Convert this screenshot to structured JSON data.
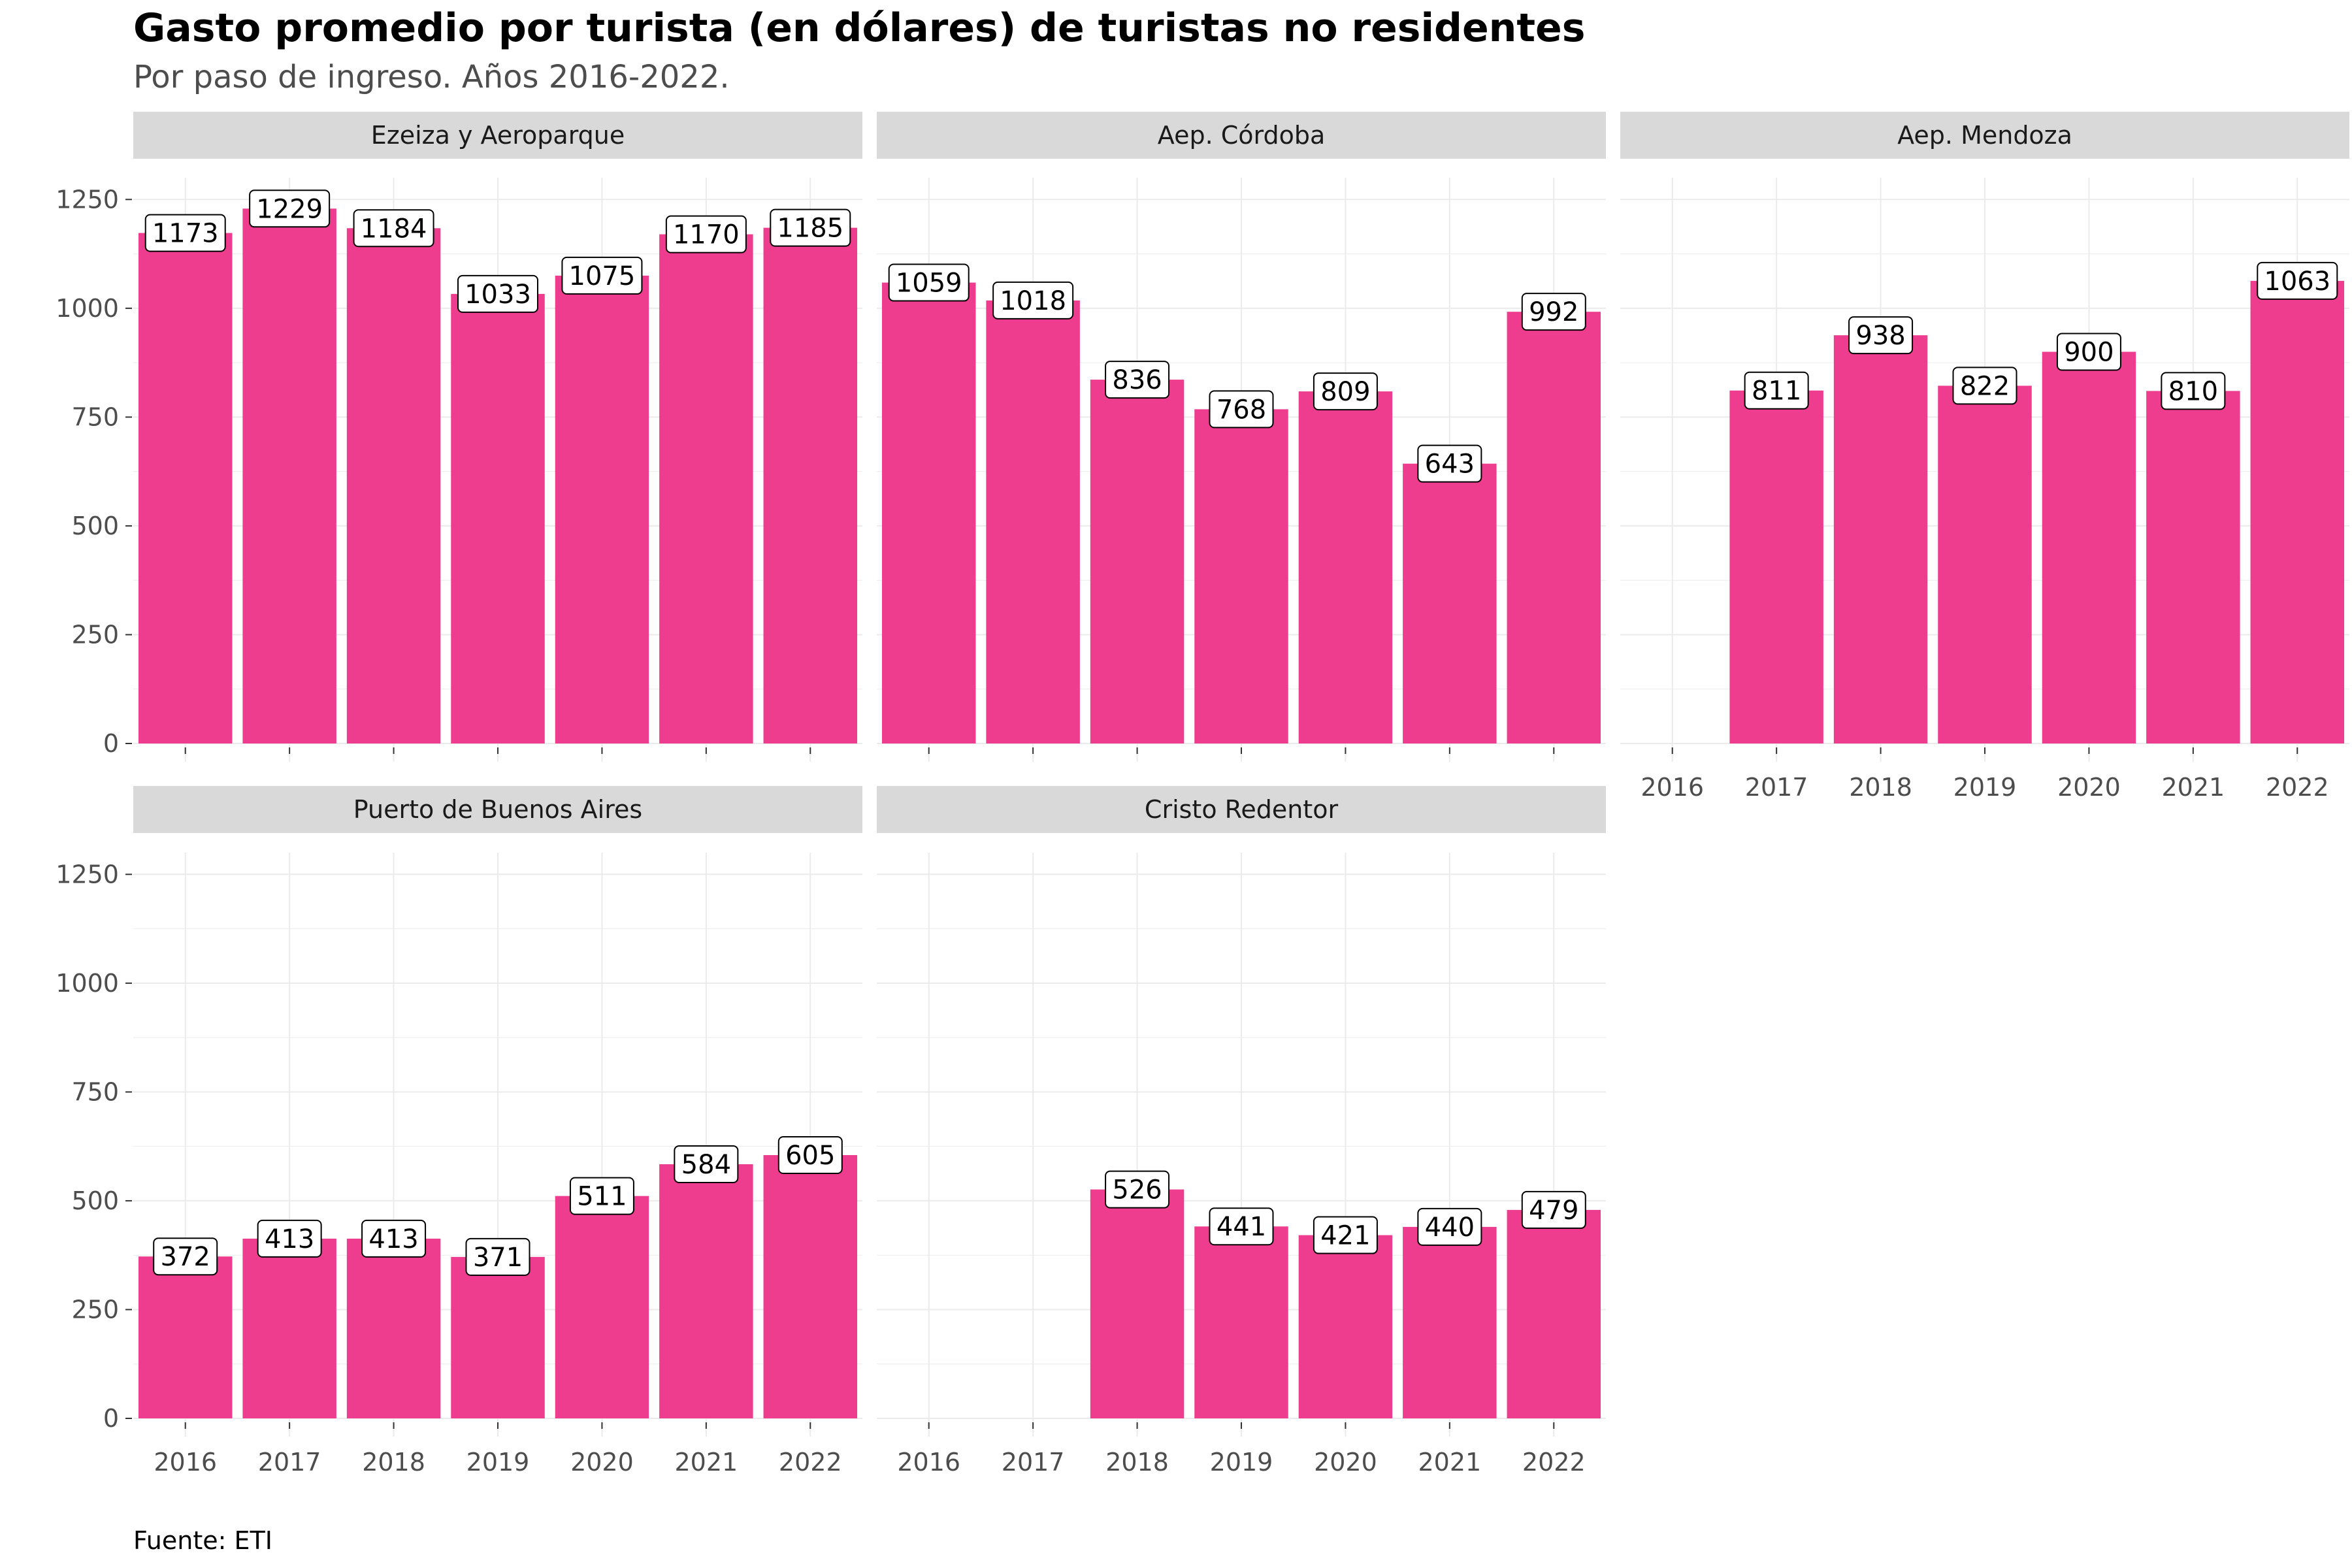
{
  "title": "Gasto promedio por turista (en dólares) de turistas no residentes",
  "subtitle": "Por paso de ingreso. Años 2016-2022.",
  "caption": "Fuente: ETI",
  "colors": {
    "bar": "#ee3d8f",
    "strip_bg": "#d9d9d9",
    "grid": "#ebebeb",
    "axis_text": "#4d4d4d",
    "label_border": "#000000",
    "label_fill": "#ffffff"
  },
  "chart_data": {
    "type": "bar",
    "facet_layout": "3 columns x 2 rows, shared y axis",
    "categories": [
      "2016",
      "2017",
      "2018",
      "2019",
      "2020",
      "2021",
      "2022"
    ],
    "ylim": [
      0,
      1300
    ],
    "yticks": [
      0,
      250,
      500,
      750,
      1000,
      1250
    ],
    "grid": true,
    "legend": "none",
    "panels": [
      {
        "name": "Ezeiza y Aeroparque",
        "values": [
          1173,
          1229,
          1184,
          1033,
          1075,
          1170,
          1185
        ]
      },
      {
        "name": "Aep. Córdoba",
        "values": [
          1059,
          1018,
          836,
          768,
          809,
          643,
          992
        ]
      },
      {
        "name": "Aep. Mendoza",
        "values": [
          null,
          811,
          938,
          822,
          900,
          810,
          1063
        ]
      },
      {
        "name": "Puerto de Buenos Aires",
        "values": [
          372,
          413,
          413,
          371,
          511,
          584,
          605
        ]
      },
      {
        "name": "Cristo Redentor",
        "values": [
          null,
          null,
          526,
          441,
          421,
          440,
          479
        ]
      }
    ]
  }
}
